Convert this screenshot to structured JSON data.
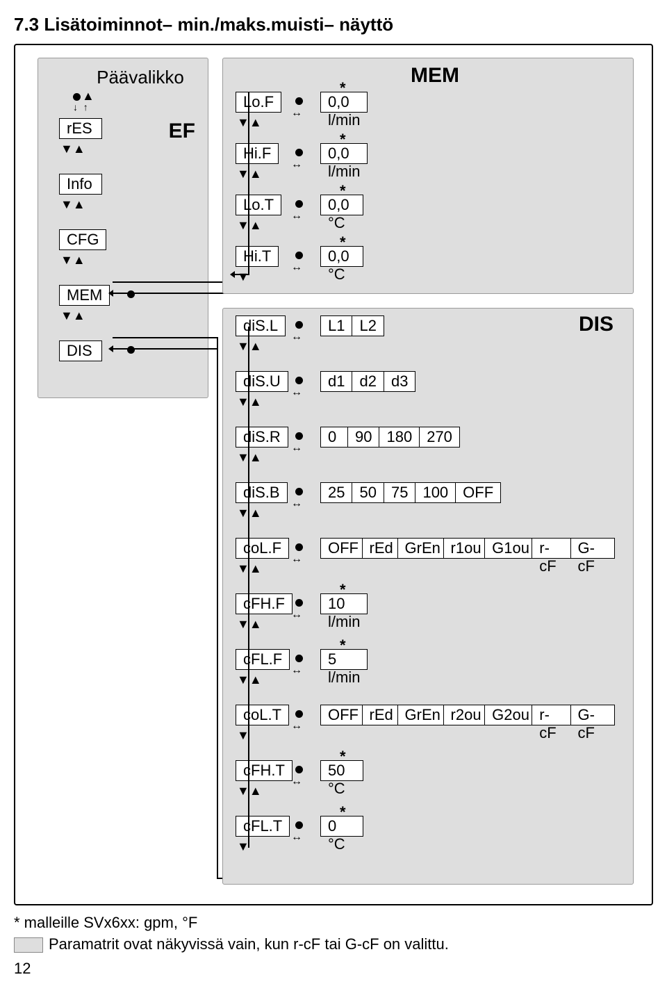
{
  "heading": "7.3  Lisätoiminnot– min./maks.muisti– näyttö",
  "left_panel": {
    "title": "Päävalikko",
    "ef": "EF",
    "items": [
      "rES",
      "Info",
      "CFG",
      "MEM",
      "DIS"
    ]
  },
  "mem_panel": {
    "title": "MEM",
    "rows": [
      {
        "param": "Lo.F",
        "value": "0,0 l/min",
        "star": true,
        "nav": "both"
      },
      {
        "param": "Hi.F",
        "value": "0,0 l/min",
        "star": true,
        "nav": "both"
      },
      {
        "param": "Lo.T",
        "value": "0,0 °C",
        "star": true,
        "nav": "both"
      },
      {
        "param": "Hi.T",
        "value": "0,0 °C",
        "star": true,
        "nav": "down"
      }
    ]
  },
  "dis_panel": {
    "title": "DIS",
    "rows": [
      {
        "param": "diS.L",
        "opts": [
          "L1",
          "L2"
        ],
        "nav": "both"
      },
      {
        "param": "diS.U",
        "opts": [
          "d1",
          "d2",
          "d3"
        ],
        "nav": "both"
      },
      {
        "param": "diS.R",
        "opts": [
          "0",
          "90",
          "180",
          "270"
        ],
        "nav": "both"
      },
      {
        "param": "diS.B",
        "opts": [
          "25",
          "50",
          "75",
          "100",
          "OFF"
        ],
        "nav": "both"
      },
      {
        "param": "coL.F",
        "opts": [
          "OFF",
          "rEd",
          "GrEn",
          "r1ou",
          "G1ou",
          "r-cF",
          "G-cF"
        ],
        "nav": "both"
      },
      {
        "param": "cFH.F",
        "value": "10 l/min",
        "star": true,
        "nav": "both"
      },
      {
        "param": "cFL.F",
        "value": "5 l/min",
        "star": true,
        "nav": "both"
      },
      {
        "param": "coL.T",
        "opts": [
          "OFF",
          "rEd",
          "GrEn",
          "r2ou",
          "G2ou",
          "r-cF",
          "G-cF"
        ],
        "nav": "down"
      },
      {
        "param": "cFH.T",
        "value": "50 °C",
        "star": true,
        "nav": "both"
      },
      {
        "param": "cFL.T",
        "value": "0 °C",
        "star": true,
        "nav": "down"
      }
    ]
  },
  "footer": {
    "note1": "* malleille SVx6xx: gpm, °F",
    "note2": "Paramatrit ovat näkyvissä vain, kun r-cF tai G-cF on valittu.",
    "page": "12"
  },
  "colors": {
    "panel_bg": "#dedede",
    "panel_border": "#9a9a9a",
    "text": "#000000"
  }
}
